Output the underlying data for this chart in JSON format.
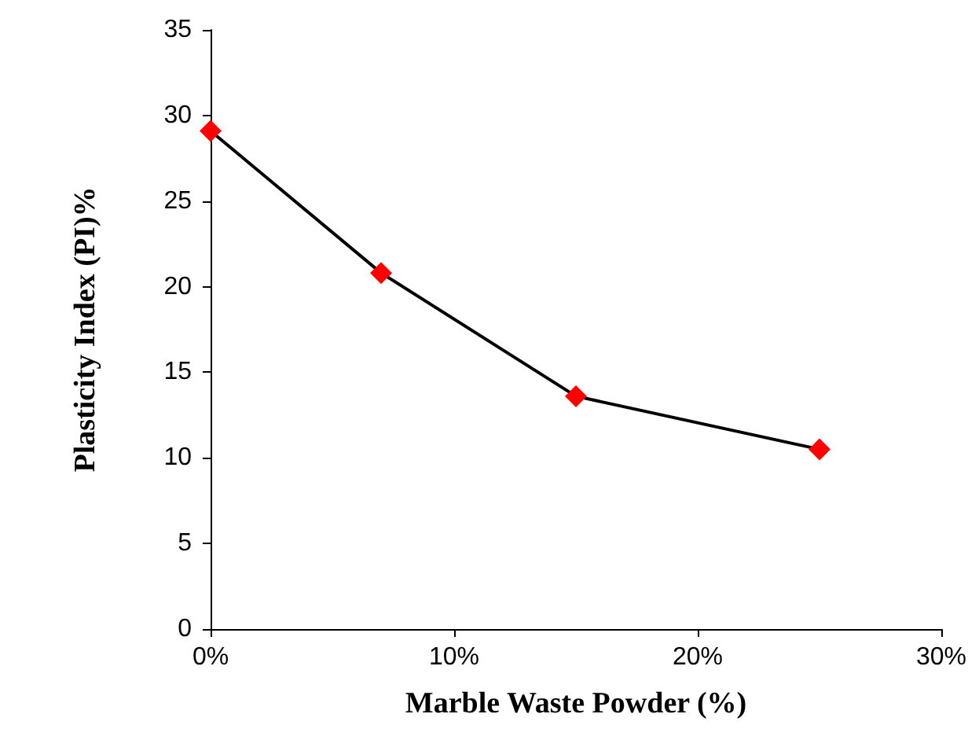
{
  "chart_data": {
    "type": "line",
    "xlabel": "Marble Waste Powder (%)",
    "ylabel": "Plasticity Index (PI)%",
    "x": [
      0,
      7,
      15,
      25
    ],
    "series": [
      {
        "color": "#000000",
        "colors": [
          "#ff0000",
          "#ff0000",
          "#ff0000",
          "#ff0000"
        ],
        "values": [
          29.1,
          20.8,
          13.6,
          10.5
        ]
      }
    ],
    "xlim": [
      0,
      30
    ],
    "xticks": [
      {
        "value": 0,
        "label": "0%"
      },
      {
        "value": 10,
        "label": "10%"
      },
      {
        "value": 20,
        "label": "20%"
      },
      {
        "value": 30,
        "label": "30%"
      }
    ],
    "ylim": [
      0,
      35
    ],
    "yticks": [
      0,
      5,
      10,
      15,
      20,
      25,
      30,
      35
    ],
    "grid": false,
    "marker": "diamond",
    "line_style": "solid"
  }
}
